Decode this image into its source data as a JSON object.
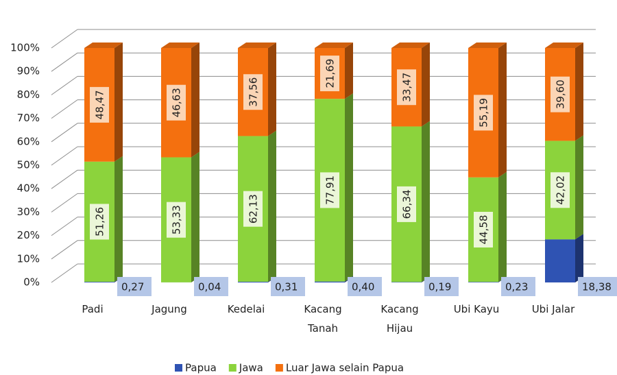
{
  "chart_data": {
    "type": "stacked_bar_100",
    "categories": [
      "Padi",
      "Jagung",
      "Kedelai",
      "Kacang Tanah",
      "Kacang Hijau",
      "Ubi Kayu",
      "Ubi Jalar"
    ],
    "series": [
      {
        "name": "Papua",
        "color": "#2f53b3",
        "values": [
          0.27,
          0.04,
          0.31,
          0.4,
          0.19,
          0.23,
          18.38
        ],
        "value_labels": [
          "0,27",
          "0,04",
          "0,31",
          "0,40",
          "0,19",
          "0,23",
          "18,38"
        ]
      },
      {
        "name": "Jawa",
        "color": "#8cd33c",
        "values": [
          51.26,
          53.33,
          62.13,
          77.91,
          66.34,
          44.58,
          42.02
        ],
        "value_labels": [
          "51,26",
          "53,33",
          "62,13",
          "77,91",
          "66,34",
          "44,58",
          "42,02"
        ]
      },
      {
        "name": "Luar Jawa selain Papua",
        "color": "#f4700f",
        "values": [
          48.47,
          46.63,
          37.56,
          21.69,
          33.47,
          55.19,
          39.6
        ],
        "value_labels": [
          "48,47",
          "46,63",
          "37,56",
          "21,69",
          "33,47",
          "55,19",
          "39,60"
        ]
      }
    ],
    "ylim": [
      0,
      100
    ],
    "yticks": [
      {
        "value": 0,
        "label": "0%"
      },
      {
        "value": 10,
        "label": "10%"
      },
      {
        "value": 20,
        "label": "20%"
      },
      {
        "value": 30,
        "label": "30%"
      },
      {
        "value": 40,
        "label": "40%"
      },
      {
        "value": 50,
        "label": "50%"
      },
      {
        "value": 60,
        "label": "60%"
      },
      {
        "value": 70,
        "label": "70%"
      },
      {
        "value": 80,
        "label": "80%"
      },
      {
        "value": 90,
        "label": "90%"
      },
      {
        "value": 100,
        "label": "100%"
      }
    ],
    "grid": true,
    "legend": "bottom"
  }
}
